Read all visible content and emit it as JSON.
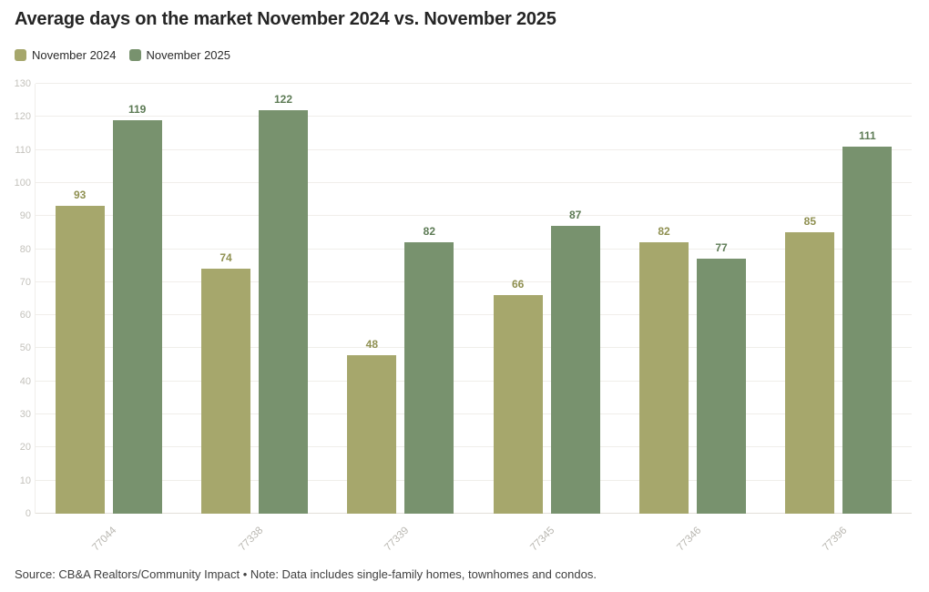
{
  "title": "Average days on the market November 2024 vs. November 2025",
  "legend": {
    "items": [
      {
        "label": "November 2024",
        "swatch": "legend-swatch-november-2024"
      },
      {
        "label": "November 2025",
        "swatch": "legend-swatch-november-2025"
      }
    ]
  },
  "footer": {
    "source_note": "Source: CB&A Realtors/Community Impact • Note: Data includes single-family homes, townhomes and condos."
  },
  "colors": {
    "series": [
      "#a6a76c",
      "#78926e"
    ],
    "value_labels": [
      "#8f9051",
      "#5d7b55"
    ],
    "grid": "#f0eeea",
    "baseline": "#e2dfd9",
    "y_tick_text": "#c4c2bc",
    "x_tick_text": "#b9b7b1",
    "title_text": "#252525",
    "footer_text": "#3f3f3f"
  },
  "chart_data": {
    "type": "bar",
    "categories": [
      "77044",
      "77338",
      "77339",
      "77345",
      "77346",
      "77396"
    ],
    "series": [
      {
        "name": "November 2024",
        "values": [
          93,
          74,
          48,
          66,
          82,
          85
        ]
      },
      {
        "name": "November 2025",
        "values": [
          119,
          122,
          82,
          87,
          77,
          111
        ]
      }
    ],
    "title": "Average days on the market November 2024 vs. November 2025",
    "xlabel": "",
    "ylabel": "",
    "ylim": [
      0,
      130
    ],
    "yticks": [
      0,
      10,
      20,
      30,
      40,
      50,
      60,
      70,
      80,
      90,
      100,
      110,
      120,
      130
    ],
    "grid": true,
    "legend_position": "top-left",
    "value_labels": true
  }
}
